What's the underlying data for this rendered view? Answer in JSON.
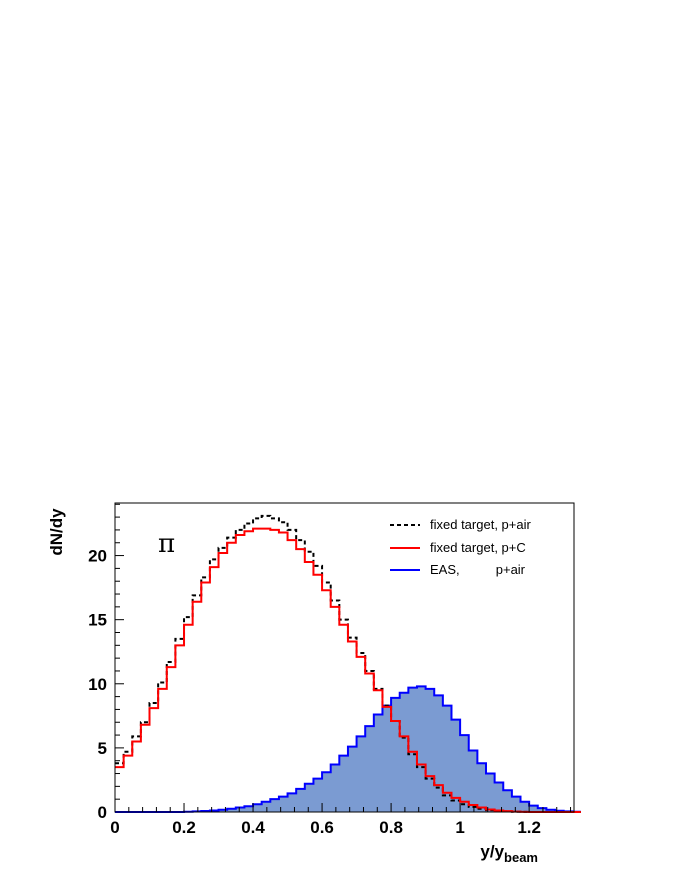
{
  "chart_data": {
    "type": "line",
    "xlabel": {
      "main": "y/y",
      "sub": "beam"
    },
    "ylabel": "dN/dy",
    "xlim": [
      0,
      1.33
    ],
    "ylim": [
      0,
      24.1
    ],
    "x_major_ticks": [
      0,
      0.2,
      0.4,
      0.6,
      0.8,
      1.0,
      1.2
    ],
    "x_tick_labels": [
      "0",
      "0.2",
      "0.4",
      "0.6",
      "0.8",
      "1",
      "1.2"
    ],
    "y_major_ticks": [
      0,
      5,
      10,
      15,
      20
    ],
    "y_tick_labels": [
      "0",
      "5",
      "10",
      "15",
      "20"
    ],
    "grid": false,
    "legend_position": "top-right",
    "annotation": "π",
    "bin_edges_start": 0,
    "bin_width": 0.025,
    "series": [
      {
        "name": "fixed target, p+air",
        "style": "dashed-step",
        "color": "#000000",
        "values": [
          3.8,
          4.7,
          5.9,
          7.0,
          8.5,
          10.1,
          11.7,
          13.5,
          15.2,
          16.9,
          18.3,
          19.7,
          20.6,
          21.4,
          22.0,
          22.5,
          22.9,
          23.1,
          22.9,
          22.6,
          22.0,
          21.2,
          20.3,
          19.2,
          17.9,
          16.5,
          15.0,
          13.6,
          12.4,
          11.0,
          9.6,
          8.3,
          7.1,
          5.8,
          4.5,
          3.5,
          2.6,
          1.9,
          1.3,
          0.9,
          0.6,
          0.4,
          0.25,
          0.15,
          0.1,
          0.05,
          0.02,
          0.01,
          0,
          0,
          0,
          0,
          0,
          0
        ]
      },
      {
        "name": "fixed target, p+C",
        "style": "solid-step",
        "color": "#ff0000",
        "values": [
          3.5,
          4.4,
          5.5,
          6.8,
          8.1,
          9.6,
          11.3,
          13.0,
          14.6,
          16.4,
          17.9,
          19.1,
          20.2,
          21.0,
          21.6,
          21.9,
          22.1,
          22.1,
          22.0,
          21.8,
          21.2,
          20.5,
          19.5,
          18.5,
          17.3,
          16.0,
          14.6,
          13.3,
          12.1,
          10.8,
          9.5,
          8.2,
          7.1,
          5.9,
          4.7,
          3.7,
          2.8,
          2.1,
          1.5,
          1.1,
          0.8,
          0.55,
          0.35,
          0.2,
          0.12,
          0.07,
          0.03,
          0.01,
          0,
          0,
          0,
          0,
          0,
          0
        ]
      },
      {
        "name": "EAS,          p+air",
        "style": "filled-step",
        "color": "#0000ff",
        "fill": "#7b9bd2",
        "values": [
          0,
          0,
          0,
          0,
          0,
          0,
          0,
          0,
          0.02,
          0.05,
          0.08,
          0.12,
          0.18,
          0.25,
          0.35,
          0.45,
          0.6,
          0.8,
          1.0,
          1.2,
          1.45,
          1.8,
          2.2,
          2.6,
          3.1,
          3.7,
          4.4,
          5.1,
          5.9,
          6.7,
          7.6,
          8.3,
          8.9,
          9.3,
          9.7,
          9.8,
          9.6,
          9.1,
          8.3,
          7.2,
          6.0,
          4.8,
          3.8,
          3.0,
          2.3,
          1.7,
          1.2,
          0.8,
          0.5,
          0.3,
          0.18,
          0.1,
          0.05,
          0.02
        ]
      }
    ]
  }
}
